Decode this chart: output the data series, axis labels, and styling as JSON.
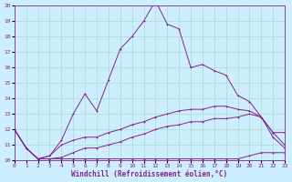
{
  "xlabel": "Windchill (Refroidissement éolien,°C)",
  "background_color": "#cceeff",
  "grid_color": "#aaddcc",
  "line_color": "#882288",
  "xlim": [
    0,
    23
  ],
  "ylim": [
    10,
    20
  ],
  "xticks": [
    0,
    1,
    2,
    3,
    4,
    5,
    6,
    7,
    8,
    9,
    10,
    11,
    12,
    13,
    14,
    15,
    16,
    17,
    18,
    19,
    20,
    21,
    22,
    23
  ],
  "yticks": [
    10,
    11,
    12,
    13,
    14,
    15,
    16,
    17,
    18,
    19,
    20
  ],
  "line1_x": [
    0,
    1,
    2,
    3,
    4,
    5,
    6,
    7,
    8,
    9,
    10,
    11,
    12,
    13,
    14,
    15,
    16,
    17,
    18,
    19,
    20,
    21,
    22,
    23
  ],
  "line1_y": [
    12.0,
    10.8,
    10.1,
    10.3,
    11.3,
    13.0,
    14.3,
    13.2,
    15.2,
    17.2,
    18.0,
    19.0,
    20.3,
    18.8,
    18.5,
    16.0,
    16.2,
    15.8,
    15.5,
    14.2,
    13.8,
    12.8,
    11.8,
    11.8
  ],
  "line2_x": [
    0,
    1,
    2,
    3,
    4,
    5,
    6,
    7,
    8,
    9,
    10,
    11,
    12,
    13,
    14,
    15,
    16,
    17,
    18,
    19,
    20,
    21,
    22,
    23
  ],
  "line2_y": [
    12.0,
    10.8,
    10.1,
    10.3,
    11.0,
    11.3,
    11.5,
    11.5,
    11.8,
    12.0,
    12.3,
    12.5,
    12.8,
    13.0,
    13.2,
    13.3,
    13.3,
    13.5,
    13.5,
    13.3,
    13.2,
    12.8,
    11.8,
    11.0
  ],
  "line3_x": [
    0,
    1,
    2,
    3,
    4,
    5,
    6,
    7,
    8,
    9,
    10,
    11,
    12,
    13,
    14,
    15,
    16,
    17,
    18,
    19,
    20,
    21,
    22,
    23
  ],
  "line3_y": [
    12.0,
    10.8,
    10.1,
    10.1,
    10.2,
    10.5,
    10.8,
    10.8,
    11.0,
    11.2,
    11.5,
    11.7,
    12.0,
    12.2,
    12.3,
    12.5,
    12.5,
    12.7,
    12.7,
    12.8,
    13.0,
    12.8,
    11.5,
    10.8
  ],
  "line4_x": [
    0,
    1,
    2,
    3,
    4,
    5,
    6,
    7,
    8,
    9,
    10,
    11,
    12,
    13,
    14,
    15,
    16,
    17,
    18,
    19,
    20,
    21,
    22,
    23
  ],
  "line4_y": [
    12.0,
    10.8,
    10.1,
    10.1,
    10.1,
    10.1,
    10.1,
    10.1,
    10.1,
    10.1,
    10.1,
    10.1,
    10.1,
    10.1,
    10.1,
    10.1,
    10.1,
    10.1,
    10.1,
    10.1,
    10.3,
    10.5,
    10.5,
    10.5
  ]
}
